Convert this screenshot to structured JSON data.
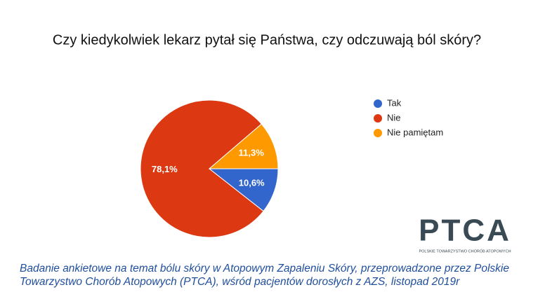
{
  "chart_data": {
    "type": "pie",
    "title": "Czy kiedykolwiek lekarz pytał się Państwa, czy odczuwają ból skóry?",
    "categories": [
      "Tak",
      "Nie",
      "Nie pamiętam"
    ],
    "values": [
      10.6,
      78.1,
      11.3
    ],
    "value_labels": [
      "10,6%",
      "78,1%",
      "11,3%"
    ],
    "colors": [
      "#3366cc",
      "#dc3912",
      "#ff9900"
    ],
    "legend": "right",
    "caption": "Badanie ankietowe na temat bólu skóry w Atopowym Zapaleniu Skóry, przeprowadzone przez Polskie Towarzystwo Chorób Atopowych (PTCA), wśród pacjentów dorosłych z AZS, listopad 2019r"
  },
  "logo": {
    "text": "PTCA",
    "subtitle": "POLSKIE TOWARZYSTWO CHORÓB ATOPOWYCH"
  }
}
